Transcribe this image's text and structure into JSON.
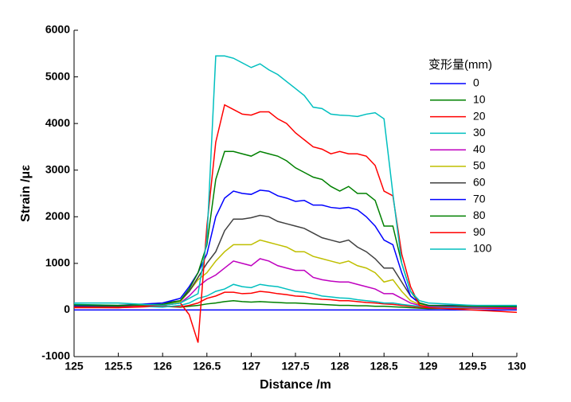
{
  "chart_data": {
    "type": "line",
    "x_label": "Distance /m",
    "y_label": "Strain /με",
    "legend_title": "变形量(mm)",
    "legend": "upper-right",
    "xlim": [
      125,
      130
    ],
    "ylim": [
      -1000,
      6000
    ],
    "xticks": [
      125,
      125.5,
      126,
      126.5,
      127,
      127.5,
      128,
      128.5,
      129,
      129.5,
      130
    ],
    "yticks": [
      -1000,
      0,
      1000,
      2000,
      3000,
      4000,
      5000,
      6000
    ],
    "x": [
      125,
      125.5,
      126,
      126.2,
      126.3,
      126.4,
      126.5,
      126.6,
      126.7,
      126.8,
      126.9,
      127,
      127.1,
      127.2,
      127.3,
      127.4,
      127.5,
      127.6,
      127.7,
      127.8,
      127.9,
      128,
      128.1,
      128.2,
      128.3,
      128.4,
      128.5,
      128.6,
      128.7,
      128.8,
      128.9,
      129,
      129.5,
      130
    ],
    "series": [
      {
        "name": "0",
        "color": "#0000ff",
        "values": [
          0,
          0,
          0,
          0,
          0,
          0,
          0,
          0,
          0,
          0,
          0,
          0,
          0,
          0,
          0,
          0,
          0,
          0,
          0,
          0,
          0,
          0,
          0,
          0,
          0,
          0,
          0,
          0,
          0,
          0,
          0,
          0,
          0,
          0
        ]
      },
      {
        "name": "10",
        "color": "#008000",
        "values": [
          80,
          60,
          80,
          60,
          80,
          100,
          130,
          150,
          180,
          200,
          180,
          170,
          180,
          170,
          160,
          150,
          150,
          140,
          130,
          120,
          110,
          100,
          100,
          90,
          90,
          80,
          80,
          70,
          60,
          50,
          40,
          30,
          40,
          50
        ]
      },
      {
        "name": "20",
        "color": "#ff0000",
        "values": [
          60,
          50,
          80,
          70,
          100,
          150,
          250,
          300,
          380,
          380,
          350,
          360,
          400,
          380,
          350,
          330,
          300,
          290,
          250,
          230,
          220,
          200,
          200,
          180,
          160,
          150,
          130,
          120,
          100,
          80,
          60,
          50,
          40,
          30
        ]
      },
      {
        "name": "30",
        "color": "#00bfbf",
        "values": [
          120,
          100,
          60,
          100,
          150,
          250,
          300,
          400,
          450,
          550,
          500,
          480,
          550,
          520,
          500,
          450,
          400,
          380,
          350,
          300,
          280,
          260,
          250,
          220,
          200,
          180,
          150,
          150,
          120,
          100,
          80,
          60,
          50,
          60
        ]
      },
      {
        "name": "40",
        "color": "#bf00bf",
        "values": [
          100,
          80,
          100,
          150,
          300,
          500,
          650,
          750,
          900,
          1050,
          1000,
          950,
          1100,
          1050,
          950,
          900,
          850,
          850,
          700,
          650,
          620,
          600,
          600,
          550,
          500,
          450,
          350,
          350,
          250,
          150,
          100,
          80,
          60,
          50
        ]
      },
      {
        "name": "50",
        "color": "#bfbf00",
        "values": [
          100,
          90,
          120,
          180,
          400,
          650,
          800,
          1050,
          1250,
          1400,
          1400,
          1400,
          1500,
          1450,
          1400,
          1350,
          1250,
          1250,
          1150,
          1100,
          1050,
          1000,
          1050,
          950,
          900,
          800,
          600,
          650,
          400,
          200,
          120,
          100,
          80,
          70
        ]
      },
      {
        "name": "60",
        "color": "#404040",
        "values": [
          100,
          80,
          150,
          200,
          400,
          700,
          1000,
          1250,
          1700,
          1950,
          1950,
          1980,
          2030,
          2000,
          1900,
          1850,
          1800,
          1750,
          1650,
          1550,
          1500,
          1450,
          1500,
          1350,
          1250,
          1100,
          900,
          900,
          600,
          300,
          150,
          100,
          90,
          80
        ]
      },
      {
        "name": "70",
        "color": "#0000ff",
        "values": [
          90,
          100,
          150,
          250,
          500,
          800,
          1200,
          2000,
          2400,
          2550,
          2500,
          2480,
          2570,
          2550,
          2450,
          2400,
          2330,
          2350,
          2250,
          2250,
          2200,
          2180,
          2200,
          2150,
          2000,
          1800,
          1500,
          1400,
          800,
          300,
          150,
          100,
          100,
          80
        ]
      },
      {
        "name": "80",
        "color": "#008000",
        "values": [
          110,
          100,
          120,
          200,
          450,
          800,
          1400,
          2800,
          3400,
          3400,
          3350,
          3300,
          3400,
          3350,
          3300,
          3200,
          3050,
          2950,
          2850,
          2800,
          2650,
          2550,
          2650,
          2500,
          2500,
          2350,
          1800,
          1800,
          1000,
          400,
          150,
          100,
          80,
          70
        ]
      },
      {
        "name": "90",
        "color": "#ff0000",
        "values": [
          50,
          50,
          100,
          150,
          -100,
          -700,
          1800,
          3600,
          4400,
          4300,
          4200,
          4180,
          4250,
          4250,
          4100,
          4000,
          3800,
          3650,
          3500,
          3450,
          3350,
          3400,
          3350,
          3350,
          3300,
          3100,
          2550,
          2450,
          1200,
          500,
          100,
          50,
          0,
          -50
        ]
      },
      {
        "name": "100",
        "color": "#00bfbf",
        "values": [
          150,
          150,
          100,
          150,
          250,
          350,
          1500,
          5450,
          5450,
          5400,
          5300,
          5200,
          5280,
          5150,
          5050,
          4900,
          4750,
          4600,
          4350,
          4320,
          4200,
          4180,
          4170,
          4150,
          4200,
          4230,
          4100,
          2500,
          1000,
          400,
          200,
          150,
          100,
          100
        ]
      }
    ]
  }
}
